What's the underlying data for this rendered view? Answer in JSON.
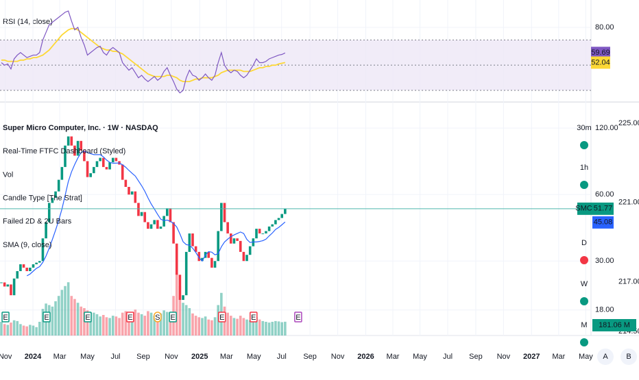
{
  "rsi_pane": {
    "title": "RSI (14, close)",
    "ylim": [
      21.3,
      101.7
    ],
    "yticks": [
      {
        "value": 80,
        "label": "80.00"
      }
    ],
    "levels": [
      70,
      50,
      30
    ],
    "band_color": "#ede7f6",
    "rsi": {
      "color": "#7e57c2",
      "last_label": "59.69",
      "values": [
        52,
        50,
        51,
        47,
        55,
        58,
        60,
        58,
        56,
        57,
        58,
        58,
        60,
        70,
        76,
        82,
        84,
        86,
        88,
        90,
        92,
        93,
        85,
        78,
        80,
        72,
        66,
        58,
        60,
        62,
        64,
        65,
        60,
        58,
        62,
        64,
        62,
        60,
        52,
        49,
        46,
        48,
        44,
        40,
        42,
        39,
        37,
        39,
        41,
        38,
        40,
        45,
        48,
        42,
        37,
        31,
        28,
        30,
        40,
        46,
        42,
        41,
        38,
        40,
        43,
        40,
        38,
        42,
        52,
        60,
        50,
        46,
        44,
        46,
        45,
        42,
        40,
        42,
        46,
        50,
        55,
        52,
        52,
        53,
        55,
        56,
        57,
        58,
        58.5,
        59.69
      ]
    },
    "rsi_ma": {
      "color": "#fdd835",
      "last_label": "52.04",
      "values": [
        54,
        54,
        53,
        53,
        53,
        53,
        54,
        54,
        55,
        55,
        56,
        56,
        57,
        58,
        60,
        62,
        65,
        68,
        71,
        74,
        76,
        78,
        79,
        79,
        78,
        76,
        74,
        72,
        70,
        68,
        66,
        64,
        63,
        62,
        62,
        61,
        61,
        60,
        59,
        57,
        55,
        53,
        51,
        49,
        47,
        45,
        43,
        42,
        41,
        41,
        41,
        41,
        42,
        42,
        41,
        40,
        38,
        37,
        37,
        37,
        38,
        39,
        39,
        40,
        40,
        40,
        40,
        41,
        42,
        44,
        45,
        46,
        46,
        46,
        46,
        46,
        45,
        45,
        45,
        46,
        47,
        48,
        48,
        49,
        49,
        50,
        50,
        51,
        51.5,
        52.04
      ]
    }
  },
  "main": {
    "legend": [
      "Super Micro Computer, Inc. · 1W · NASDAQ",
      "Real-Time FTFC Dashboard (Styled)",
      "Vol",
      "Candle Type [The Strat]",
      "Failed 2D & 2U Bars",
      "SMA (9, close)"
    ],
    "log": true,
    "ylim": [
      13.8,
      156.4
    ],
    "yticks": [
      {
        "value": 120,
        "label": "120.00"
      },
      {
        "value": 60,
        "label": "60.00"
      },
      {
        "value": 30,
        "label": "30.00"
      },
      {
        "value": 18,
        "label": "18.00"
      }
    ],
    "y2lim": [
      214.29,
      226.04
    ],
    "y2ticks": [
      {
        "value": 225,
        "label": "225.00"
      },
      {
        "value": 221,
        "label": "221.00"
      },
      {
        "value": 217,
        "label": "217.00"
      },
      {
        "value": 214.5,
        "label": "214.50"
      }
    ],
    "price": {
      "symbol": "SMCI",
      "last_label": "51.77",
      "up_color": "#089981",
      "down_color": "#f23645",
      "line_color": "#4db6ac",
      "closes": [
        24,
        23,
        23.5,
        21,
        25,
        27,
        29,
        28,
        27,
        28,
        29,
        29.5,
        30,
        38,
        45,
        55,
        58,
        62,
        70,
        80,
        100,
        110,
        100,
        90,
        105,
        95,
        85,
        72,
        75,
        80,
        85,
        88,
        80,
        78,
        84,
        88,
        85,
        82,
        70,
        65,
        60,
        62,
        55,
        48,
        50,
        45,
        42,
        44,
        46,
        42,
        43,
        48,
        52,
        45,
        36,
        26,
        20,
        21,
        33,
        40,
        35,
        33,
        30,
        31,
        33,
        31,
        28,
        30,
        41,
        55,
        45,
        40,
        36,
        38,
        37,
        33,
        30,
        32,
        35,
        38,
        42,
        40,
        40,
        41,
        43,
        44,
        46,
        47,
        49,
        51.77
      ]
    },
    "sma": {
      "color": "#2962ff",
      "last_label": "45.08",
      "values": [
        null,
        null,
        null,
        null,
        null,
        null,
        null,
        null,
        25.7,
        26.2,
        27,
        27.8,
        28.3,
        29.6,
        31.6,
        34.3,
        37.6,
        41.4,
        45.9,
        51.6,
        59.5,
        68.7,
        76,
        82.1,
        87.9,
        92.9,
        94.3,
        93.1,
        91.9,
        91,
        91,
        91,
        88.9,
        86,
        84,
        83.2,
        83.3,
        83.4,
        81.9,
        79.8,
        77.2,
        74.9,
        72.8,
        69.2,
        65.8,
        62.1,
        57.9,
        54.4,
        51.6,
        48.8,
        46.4,
        45.7,
        46,
        45.4,
        44.4,
        42.8,
        39.8,
        36.7,
        35.6,
        35.4,
        34.3,
        32.8,
        31.1,
        30,
        31.9,
        33.1,
        32.9,
        32,
        32.4,
        34.8,
        36.6,
        37.7,
        38.7,
        39.4,
        40,
        40.6,
        40,
        37.6,
        36.4,
        36.6,
        36.6,
        36.8,
        37.1,
        37.7,
        39,
        40.2,
        41.7,
        42.6,
        43.8,
        45.08
      ]
    },
    "volume": {
      "ylim": [
        0,
        900
      ],
      "last_label": "181.06 M",
      "values": [
        180,
        150,
        140,
        170,
        200,
        190,
        150,
        130,
        120,
        140,
        130,
        110,
        180,
        350,
        420,
        400,
        380,
        450,
        520,
        600,
        650,
        700,
        520,
        480,
        430,
        380,
        360,
        330,
        300,
        300,
        280,
        250,
        270,
        240,
        230,
        260,
        250,
        230,
        300,
        320,
        280,
        260,
        340,
        300,
        280,
        260,
        320,
        300,
        260,
        250,
        290,
        330,
        310,
        280,
        520,
        820,
        650,
        430,
        400,
        360,
        290,
        260,
        240,
        230,
        250,
        210,
        200,
        240,
        400,
        560,
        380,
        300,
        260,
        230,
        220,
        260,
        230,
        210,
        200,
        220,
        240,
        210,
        190,
        180,
        170,
        180,
        190,
        185,
        175,
        181.06
      ]
    },
    "earnings": [
      {
        "label": "E",
        "week": 1.3,
        "color": "#089981"
      },
      {
        "label": "E",
        "week": 14.2,
        "color": "#089981"
      },
      {
        "label": "E",
        "week": 27.1,
        "color": "#089981"
      },
      {
        "label": "E",
        "week": 40.4,
        "color": "#f23645"
      },
      {
        "label": "S",
        "week": 49,
        "color": "#f9a825"
      },
      {
        "label": "E",
        "week": 53.8,
        "color": "#089981"
      },
      {
        "label": "E",
        "week": 69.2,
        "color": "#f23645"
      },
      {
        "label": "E",
        "week": 79.1,
        "color": "#f23645"
      },
      {
        "label": "E",
        "week": 93.1,
        "color": "#ab47bc"
      }
    ],
    "timeframes": [
      {
        "label": "30m",
        "color": "#089981"
      },
      {
        "label": "1h",
        "color": "#089981"
      },
      {
        "label": "D",
        "color": "#f23645"
      },
      {
        "label": "W",
        "color": "#089981"
      },
      {
        "label": "M",
        "color": "#089981"
      }
    ]
  },
  "x_axis": [
    {
      "week": 1.2,
      "label": "Nov",
      "strong": false
    },
    {
      "week": 9.9,
      "label": "2024",
      "strong": true
    },
    {
      "week": 18.3,
      "label": "Mar",
      "strong": false
    },
    {
      "week": 27,
      "label": "May",
      "strong": false
    },
    {
      "week": 35.8,
      "label": "Jul",
      "strong": false
    },
    {
      "week": 44.5,
      "label": "Sep",
      "strong": false
    },
    {
      "week": 53.3,
      "label": "Nov",
      "strong": false
    },
    {
      "week": 62.2,
      "label": "2025",
      "strong": true
    },
    {
      "week": 70.6,
      "label": "Mar",
      "strong": false
    },
    {
      "week": 79.2,
      "label": "May",
      "strong": false
    },
    {
      "week": 87.9,
      "label": "Jul",
      "strong": false
    },
    {
      "week": 96.8,
      "label": "Sep",
      "strong": false
    },
    {
      "week": 105.5,
      "label": "Nov",
      "strong": false
    },
    {
      "week": 114.3,
      "label": "2026",
      "strong": true
    },
    {
      "week": 122.8,
      "label": "Mar",
      "strong": false
    },
    {
      "week": 131.3,
      "label": "May",
      "strong": false
    },
    {
      "week": 140,
      "label": "Jul",
      "strong": false
    },
    {
      "week": 148.8,
      "label": "Sep",
      "strong": false
    },
    {
      "week": 157.5,
      "label": "Nov",
      "strong": false
    },
    {
      "week": 166.3,
      "label": "2027",
      "strong": true
    },
    {
      "week": 174.8,
      "label": "Mar",
      "strong": false
    },
    {
      "week": 183.3,
      "label": "May",
      "strong": false
    }
  ],
  "buttons": [
    "A",
    "B"
  ]
}
